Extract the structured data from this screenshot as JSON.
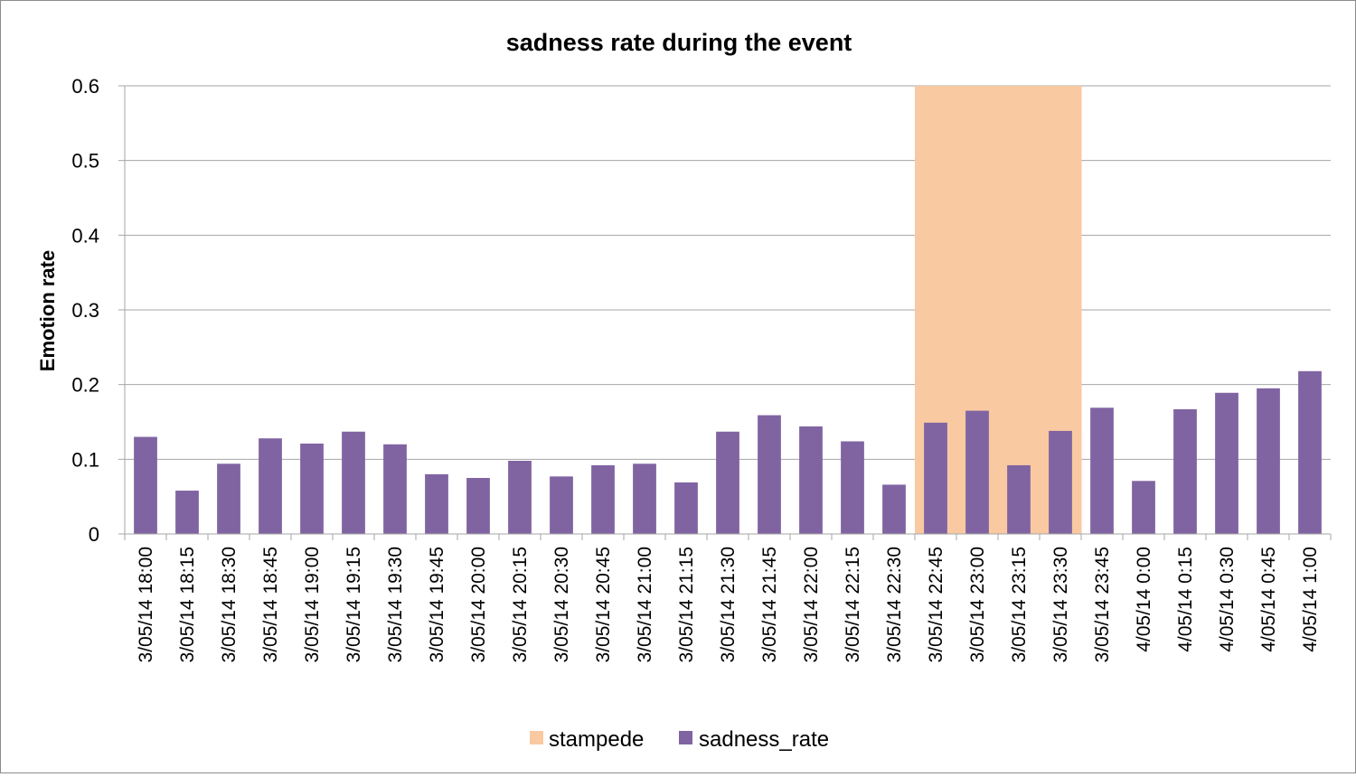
{
  "chart_data": {
    "type": "bar",
    "title": "sadness rate during the event",
    "xlabel": "",
    "ylabel": "Emotion rate",
    "ylim": [
      0,
      0.6
    ],
    "yticks": [
      0,
      0.1,
      0.2,
      0.3,
      0.4,
      0.5,
      0.6
    ],
    "ytick_labels": [
      "0",
      "0.1",
      "0.2",
      "0.3",
      "0.4",
      "0.5",
      "0.6"
    ],
    "grid": true,
    "categories": [
      "3/05/14 18:00",
      "3/05/14 18:15",
      "3/05/14 18:30",
      "3/05/14 18:45",
      "3/05/14 19:00",
      "3/05/14 19:15",
      "3/05/14 19:30",
      "3/05/14 19:45",
      "3/05/14 20:00",
      "3/05/14 20:15",
      "3/05/14 20:30",
      "3/05/14 20:45",
      "3/05/14 21:00",
      "3/05/14 21:15",
      "3/05/14 21:30",
      "3/05/14 21:45",
      "3/05/14 22:00",
      "3/05/14 22:15",
      "3/05/14 22:30",
      "3/05/14 22:45",
      "3/05/14 23:00",
      "3/05/14 23:15",
      "3/05/14 23:30",
      "3/05/14 23:45",
      "4/05/14 0:00",
      "4/05/14 0:15",
      "4/05/14 0:30",
      "4/05/14 0:45",
      "4/05/14 1:00"
    ],
    "series": [
      {
        "name": "stampede",
        "color": "#f9c9a1",
        "values": [
          0,
          0,
          0,
          0,
          0,
          0,
          0,
          0,
          0,
          0,
          0,
          0,
          0,
          0,
          0,
          0,
          0,
          0,
          0,
          0.6,
          0.6,
          0.6,
          0.6,
          0,
          0,
          0,
          0,
          0,
          0
        ]
      },
      {
        "name": "sadness_rate",
        "color": "#8064a2",
        "values": [
          0.13,
          0.058,
          0.094,
          0.128,
          0.121,
          0.137,
          0.12,
          0.08,
          0.075,
          0.098,
          0.077,
          0.092,
          0.094,
          0.069,
          0.137,
          0.159,
          0.144,
          0.124,
          0.066,
          0.149,
          0.165,
          0.092,
          0.138,
          0.169,
          0.071,
          0.167,
          0.189,
          0.195,
          0.218
        ]
      }
    ],
    "legend": {
      "position": "bottom",
      "entries": [
        "stampede",
        "sadness_rate"
      ]
    }
  }
}
